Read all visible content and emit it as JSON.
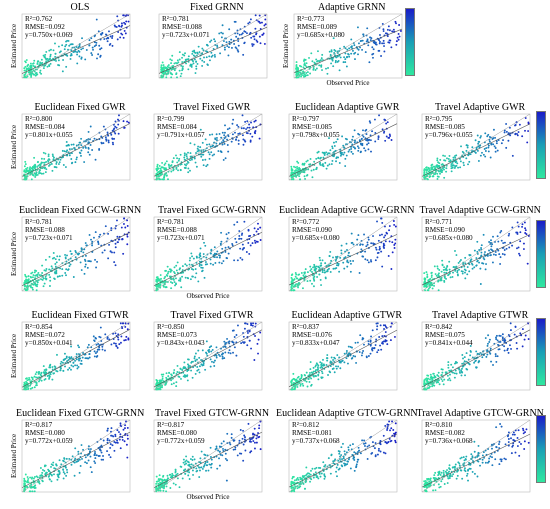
{
  "colors": {
    "scale_high": "#1a1cc8",
    "scale_mid": "#1a9fb6",
    "scale_low": "#2fe8a0",
    "fit_line": "#555555",
    "diagonal": "#999999"
  },
  "chart_data": [
    {
      "type": "scatter",
      "title": "OLS",
      "r2": "R²=0.762",
      "rmse": "RMSE=0.092",
      "eq": "y=0.750x+0.069",
      "slope": 0.75,
      "intercept": 0.069,
      "xlabel": "",
      "ylabel": "Estimated Price",
      "colorbar": true
    },
    {
      "type": "scatter",
      "title": "Fixed GRNN",
      "r2": "R²=0.781",
      "rmse": "RMSE=0.088",
      "eq": "y=0.723x+0.071",
      "slope": 0.723,
      "intercept": 0.071,
      "xlabel": "",
      "ylabel": "",
      "colorbar": false
    },
    {
      "type": "scatter",
      "title": "Adaptive GRNN",
      "r2": "R²=0.773",
      "rmse": "RMSE=0.089",
      "eq": "y=0.685x+0.080",
      "slope": 0.685,
      "intercept": 0.08,
      "xlabel": "Observed Price",
      "ylabel": "Estimated Price",
      "colorbar": false
    },
    {
      "type": "scatter",
      "title": "Euclidean Fixed GWR",
      "r2": "R²=0.800",
      "rmse": "RMSE=0.084",
      "eq": "y=0.801x+0.055",
      "slope": 0.801,
      "intercept": 0.055,
      "xlabel": "",
      "ylabel": "Estimated Price",
      "colorbar": false
    },
    {
      "type": "scatter",
      "title": "Travel Fixed GWR",
      "r2": "R²=0.799",
      "rmse": "RMSE=0.084",
      "eq": "y=0.791x+0.057",
      "slope": 0.791,
      "intercept": 0.057,
      "xlabel": "",
      "ylabel": "",
      "colorbar": false
    },
    {
      "type": "scatter",
      "title": "Euclidean Adaptive GWR",
      "r2": "R²=0.797",
      "rmse": "RMSE=0.085",
      "eq": "y=0.798x+0.055",
      "slope": 0.798,
      "intercept": 0.055,
      "xlabel": "",
      "ylabel": "",
      "colorbar": false
    },
    {
      "type": "scatter",
      "title": "Travel Adaptive GWR",
      "r2": "R²=0.795",
      "rmse": "RMSE=0.085",
      "eq": "y=0.796x+0.055",
      "slope": 0.796,
      "intercept": 0.055,
      "xlabel": "",
      "ylabel": "",
      "colorbar": true
    },
    {
      "type": "scatter",
      "title": "Euclidean Fixed GCW-GRNN",
      "r2": "R²=0.781",
      "rmse": "RMSE=0.088",
      "eq": "y=0.723x+0.071",
      "slope": 0.723,
      "intercept": 0.071,
      "xlabel": "",
      "ylabel": "Estimated Price",
      "colorbar": false
    },
    {
      "type": "scatter",
      "title": "Travel Fixed GCW-GRNN",
      "r2": "R²=0.781",
      "rmse": "RMSE=0.088",
      "eq": "y=0.723x+0.071",
      "slope": 0.723,
      "intercept": 0.071,
      "xlabel": "Observed Price",
      "ylabel": "",
      "colorbar": false
    },
    {
      "type": "scatter",
      "title": "Euclidean Adaptive GCW-GRNN",
      "r2": "R²=0.772",
      "rmse": "RMSE=0.090",
      "eq": "y=0.685x+0.080",
      "slope": 0.685,
      "intercept": 0.08,
      "xlabel": "",
      "ylabel": "",
      "colorbar": false
    },
    {
      "type": "scatter",
      "title": "Travel Adaptive GCW-GRNN",
      "r2": "R²=0.771",
      "rmse": "RMSE=0.090",
      "eq": "y=0.685x+0.080",
      "slope": 0.685,
      "intercept": 0.08,
      "xlabel": "",
      "ylabel": "",
      "colorbar": true
    },
    {
      "type": "scatter",
      "title": "Euclidean Fixed GTWR",
      "r2": "R²=0.854",
      "rmse": "RMSE=0.072",
      "eq": "y=0.850x+0.041",
      "slope": 0.85,
      "intercept": 0.041,
      "xlabel": "",
      "ylabel": "Estimated Price",
      "colorbar": false
    },
    {
      "type": "scatter",
      "title": "Travel Fixed GTWR",
      "r2": "R²=0.850",
      "rmse": "RMSE=0.073",
      "eq": "y=0.843x+0.043",
      "slope": 0.843,
      "intercept": 0.043,
      "xlabel": "",
      "ylabel": "",
      "colorbar": false
    },
    {
      "type": "scatter",
      "title": "Euclidean Adaptive GTWR",
      "r2": "R²=0.837",
      "rmse": "RMSE=0.076",
      "eq": "y=0.833x+0.047",
      "slope": 0.833,
      "intercept": 0.047,
      "xlabel": "",
      "ylabel": "",
      "colorbar": false
    },
    {
      "type": "scatter",
      "title": "Travel Adaptive GTWR",
      "r2": "R²=0.842",
      "rmse": "RMSE=0.075",
      "eq": "y=0.841x+0.044",
      "slope": 0.841,
      "intercept": 0.044,
      "xlabel": "",
      "ylabel": "",
      "colorbar": true
    },
    {
      "type": "scatter",
      "title": "Euclidean Fixed GTCW-GRNN",
      "r2": "R²=0.817",
      "rmse": "RMSE=0.080",
      "eq": "y=0.772x+0.059",
      "slope": 0.772,
      "intercept": 0.059,
      "xlabel": "",
      "ylabel": "Estimated Price",
      "colorbar": false
    },
    {
      "type": "scatter",
      "title": "Travel Fixed GTCW-GRNN",
      "r2": "R²=0.817",
      "rmse": "RMSE=0.080",
      "eq": "y=0.772x+0.059",
      "slope": 0.772,
      "intercept": 0.059,
      "xlabel": "Observed Price",
      "ylabel": "",
      "colorbar": false
    },
    {
      "type": "scatter",
      "title": "Euclidean Adaptive GTCW-GRNN",
      "r2": "R²=0.812",
      "rmse": "RMSE=0.081",
      "eq": "y=0.737x+0.068",
      "slope": 0.737,
      "intercept": 0.068,
      "xlabel": "",
      "ylabel": "",
      "colorbar": false
    },
    {
      "type": "scatter",
      "title": "Travel Adaptive GTCW-GRNN",
      "r2": "R²=0.810",
      "rmse": "RMSE=0.082",
      "eq": "y=0.736x+0.068",
      "slope": 0.736,
      "intercept": 0.068,
      "xlabel": "",
      "ylabel": "",
      "colorbar": true
    }
  ]
}
